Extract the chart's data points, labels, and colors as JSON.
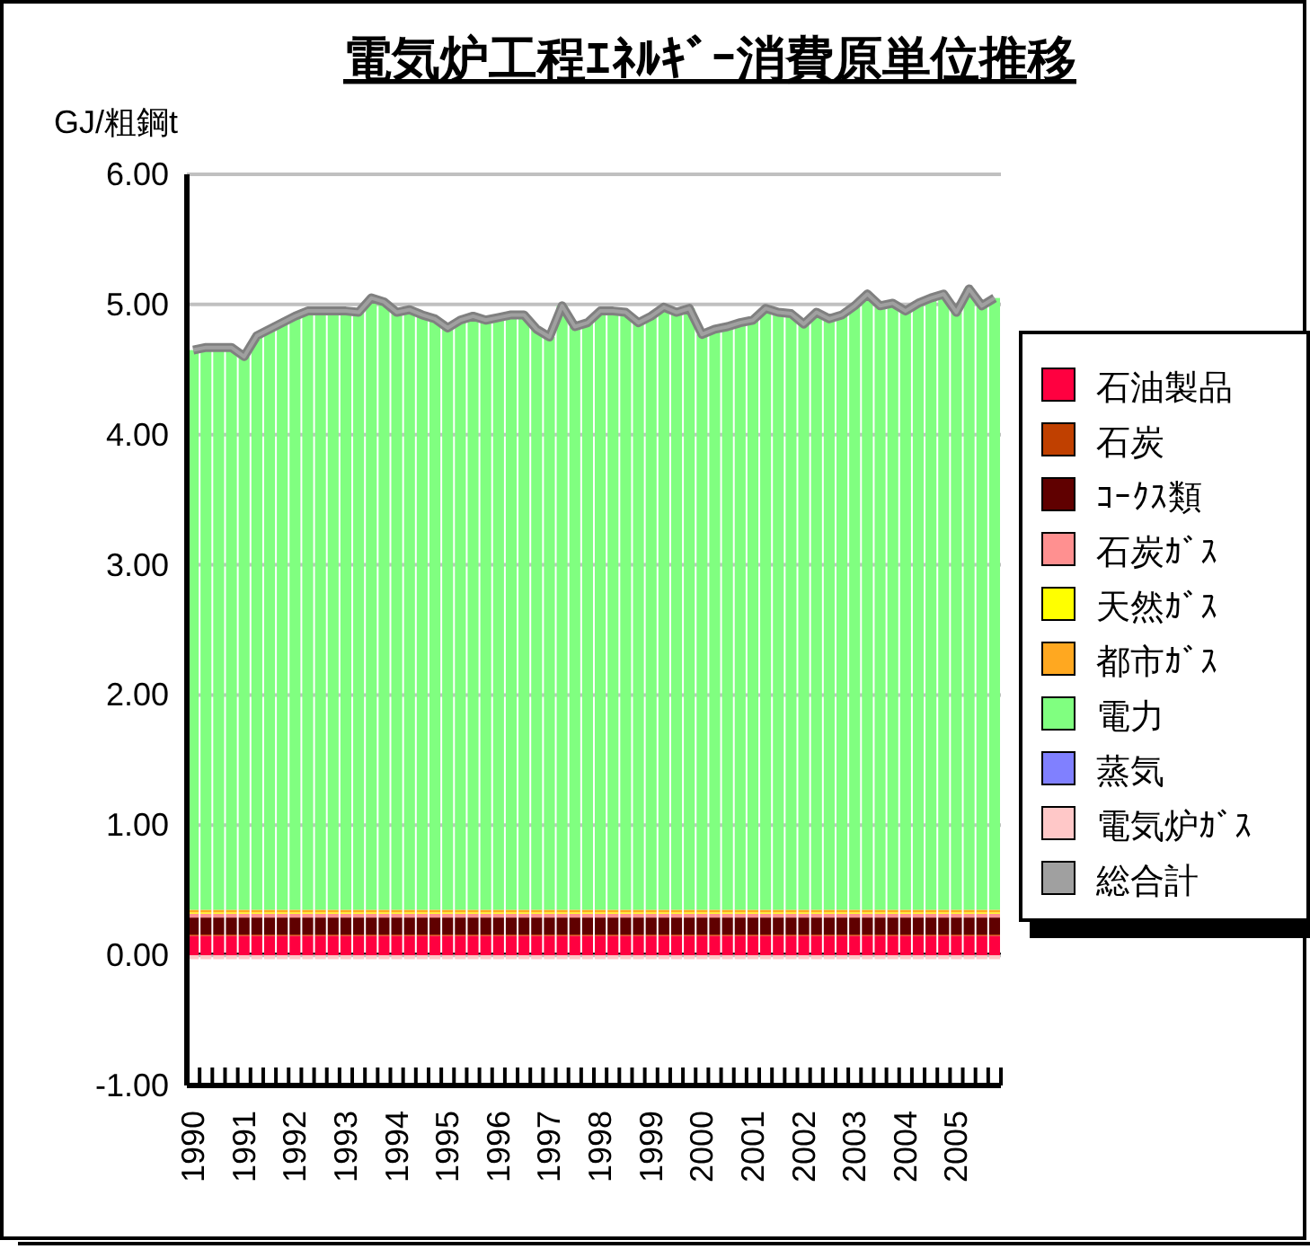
{
  "chart_data": {
    "type": "bar",
    "stacked": true,
    "title": "電気炉工程ｴﾈﾙｷﾞｰ消費原単位推移",
    "ylabel": "GJ/粗鋼t",
    "categories": [
      "1990",
      null,
      null,
      null,
      "1991",
      null,
      null,
      null,
      "1992",
      null,
      null,
      null,
      "1993",
      null,
      null,
      null,
      "1994",
      null,
      null,
      null,
      "1995",
      null,
      null,
      null,
      "1996",
      null,
      null,
      null,
      "1997",
      null,
      null,
      null,
      "1998",
      null,
      null,
      null,
      "1999",
      null,
      null,
      null,
      "2000",
      null,
      null,
      null,
      "2001",
      null,
      null,
      null,
      "2002",
      null,
      null,
      null,
      "2003",
      null,
      null,
      null,
      "2004",
      null,
      null,
      null,
      "2005",
      null,
      null,
      null
    ],
    "ylim": [
      -1,
      6
    ],
    "yticks": [
      {
        "value": -1,
        "label": "-1.00"
      },
      {
        "value": 0,
        "label": "0.00"
      },
      {
        "value": 1,
        "label": "1.00"
      },
      {
        "value": 2,
        "label": "2.00"
      },
      {
        "value": 3,
        "label": "3.00"
      },
      {
        "value": 4,
        "label": "4.00"
      },
      {
        "value": 5,
        "label": "5.00"
      },
      {
        "value": 6,
        "label": "6.00"
      }
    ],
    "grid": "y",
    "legend": "right",
    "series": [
      {
        "name": "石油製品",
        "color": "#ff0040",
        "values": [
          0.15,
          0.15,
          0.15,
          0.15,
          0.15,
          0.15,
          0.15,
          0.15,
          0.15,
          0.15,
          0.15,
          0.15,
          0.15,
          0.15,
          0.15,
          0.15,
          0.15,
          0.15,
          0.15,
          0.15,
          0.15,
          0.15,
          0.15,
          0.15,
          0.15,
          0.15,
          0.15,
          0.15,
          0.15,
          0.15,
          0.15,
          0.15,
          0.15,
          0.15,
          0.15,
          0.15,
          0.15,
          0.15,
          0.15,
          0.15,
          0.15,
          0.15,
          0.15,
          0.15,
          0.15,
          0.15,
          0.15,
          0.15,
          0.15,
          0.15,
          0.15,
          0.15,
          0.15,
          0.15,
          0.15,
          0.15,
          0.15,
          0.15,
          0.15,
          0.15,
          0.15,
          0.15,
          0.15,
          0.15
        ]
      },
      {
        "name": "石炭",
        "color": "#c04000",
        "values": [
          0.01,
          0.01,
          0.01,
          0.01,
          0.01,
          0.01,
          0.01,
          0.01,
          0.01,
          0.01,
          0.01,
          0.01,
          0.01,
          0.01,
          0.01,
          0.01,
          0.01,
          0.01,
          0.01,
          0.01,
          0.01,
          0.01,
          0.01,
          0.01,
          0.01,
          0.01,
          0.01,
          0.01,
          0.01,
          0.01,
          0.01,
          0.01,
          0.01,
          0.01,
          0.01,
          0.01,
          0.01,
          0.01,
          0.01,
          0.01,
          0.01,
          0.01,
          0.01,
          0.01,
          0.01,
          0.01,
          0.01,
          0.01,
          0.01,
          0.01,
          0.01,
          0.01,
          0.01,
          0.01,
          0.01,
          0.01,
          0.01,
          0.01,
          0.01,
          0.01,
          0.01,
          0.01,
          0.01,
          0.01
        ]
      },
      {
        "name": "ｺｰｸｽ類",
        "color": "#600000",
        "values": [
          0.13,
          0.13,
          0.13,
          0.13,
          0.13,
          0.13,
          0.13,
          0.13,
          0.13,
          0.13,
          0.13,
          0.13,
          0.13,
          0.13,
          0.13,
          0.13,
          0.13,
          0.13,
          0.13,
          0.13,
          0.13,
          0.13,
          0.13,
          0.13,
          0.13,
          0.13,
          0.13,
          0.13,
          0.13,
          0.13,
          0.13,
          0.13,
          0.13,
          0.13,
          0.13,
          0.13,
          0.13,
          0.13,
          0.13,
          0.13,
          0.13,
          0.13,
          0.13,
          0.13,
          0.13,
          0.13,
          0.13,
          0.13,
          0.13,
          0.13,
          0.13,
          0.13,
          0.13,
          0.13,
          0.13,
          0.13,
          0.13,
          0.13,
          0.13,
          0.13,
          0.13,
          0.13,
          0.13,
          0.13
        ]
      },
      {
        "name": "石炭ｶﾞｽ",
        "color": "#ff9090",
        "values": [
          0.03,
          0.03,
          0.03,
          0.03,
          0.03,
          0.03,
          0.03,
          0.03,
          0.03,
          0.03,
          0.03,
          0.03,
          0.03,
          0.03,
          0.03,
          0.03,
          0.03,
          0.03,
          0.03,
          0.03,
          0.03,
          0.03,
          0.03,
          0.03,
          0.03,
          0.03,
          0.03,
          0.03,
          0.03,
          0.03,
          0.03,
          0.03,
          0.03,
          0.03,
          0.03,
          0.03,
          0.03,
          0.03,
          0.03,
          0.03,
          0.03,
          0.03,
          0.03,
          0.03,
          0.03,
          0.03,
          0.03,
          0.03,
          0.03,
          0.03,
          0.03,
          0.03,
          0.03,
          0.03,
          0.03,
          0.03,
          0.03,
          0.03,
          0.03,
          0.03,
          0.03,
          0.03,
          0.03,
          0.03
        ]
      },
      {
        "name": "天然ｶﾞｽ",
        "color": "#ffff00",
        "values": [
          0.01,
          0.01,
          0.01,
          0.01,
          0.01,
          0.01,
          0.01,
          0.01,
          0.01,
          0.01,
          0.01,
          0.01,
          0.01,
          0.01,
          0.01,
          0.01,
          0.01,
          0.01,
          0.01,
          0.01,
          0.01,
          0.01,
          0.01,
          0.01,
          0.01,
          0.01,
          0.01,
          0.01,
          0.01,
          0.01,
          0.01,
          0.01,
          0.01,
          0.01,
          0.01,
          0.01,
          0.01,
          0.01,
          0.01,
          0.01,
          0.01,
          0.01,
          0.01,
          0.01,
          0.01,
          0.01,
          0.01,
          0.01,
          0.01,
          0.01,
          0.01,
          0.01,
          0.01,
          0.01,
          0.01,
          0.01,
          0.01,
          0.01,
          0.01,
          0.01,
          0.01,
          0.01,
          0.01,
          0.01
        ]
      },
      {
        "name": "都市ｶﾞｽ",
        "color": "#ffa820",
        "values": [
          0.02,
          0.02,
          0.02,
          0.02,
          0.02,
          0.02,
          0.02,
          0.02,
          0.02,
          0.02,
          0.02,
          0.02,
          0.02,
          0.02,
          0.02,
          0.02,
          0.02,
          0.02,
          0.02,
          0.02,
          0.02,
          0.02,
          0.02,
          0.02,
          0.02,
          0.02,
          0.02,
          0.02,
          0.02,
          0.02,
          0.02,
          0.02,
          0.02,
          0.02,
          0.02,
          0.02,
          0.02,
          0.02,
          0.02,
          0.02,
          0.02,
          0.02,
          0.02,
          0.02,
          0.02,
          0.02,
          0.02,
          0.02,
          0.02,
          0.02,
          0.02,
          0.02,
          0.02,
          0.02,
          0.02,
          0.02,
          0.02,
          0.02,
          0.02,
          0.02,
          0.02,
          0.02,
          0.02,
          0.02
        ]
      },
      {
        "name": "電力",
        "color": "#80ff80",
        "values": [
          4.3,
          4.32,
          4.32,
          4.32,
          4.25,
          4.41,
          4.46,
          4.51,
          4.56,
          4.6,
          4.6,
          4.6,
          4.6,
          4.59,
          4.7,
          4.67,
          4.59,
          4.61,
          4.57,
          4.54,
          4.47,
          4.53,
          4.56,
          4.53,
          4.55,
          4.57,
          4.57,
          4.46,
          4.4,
          4.64,
          4.48,
          4.51,
          4.6,
          4.6,
          4.59,
          4.51,
          4.56,
          4.63,
          4.59,
          4.62,
          4.42,
          4.46,
          4.48,
          4.51,
          4.53,
          4.62,
          4.59,
          4.58,
          4.5,
          4.59,
          4.54,
          4.57,
          4.64,
          4.73,
          4.64,
          4.66,
          4.6,
          4.66,
          4.7,
          4.73,
          4.59,
          4.77,
          4.64,
          4.7
        ]
      },
      {
        "name": "蒸気",
        "color": "#8080ff",
        "values": [
          0,
          0,
          0,
          0,
          0,
          0,
          0,
          0,
          0,
          0,
          0,
          0,
          0,
          0,
          0,
          0,
          0,
          0,
          0,
          0,
          0,
          0,
          0,
          0,
          0,
          0,
          0,
          0,
          0,
          0,
          0,
          0,
          0,
          0,
          0,
          0,
          0,
          0,
          0,
          0,
          0,
          0,
          0,
          0,
          0,
          0,
          0,
          0,
          0,
          0,
          0,
          0,
          0,
          0,
          0,
          0,
          0,
          0,
          0,
          0,
          0,
          0,
          0,
          0
        ]
      },
      {
        "name": "電気炉ｶﾞｽ",
        "color": "#ffc8c8",
        "values": [
          -0.03,
          -0.03,
          -0.03,
          -0.03,
          -0.03,
          -0.03,
          -0.03,
          -0.03,
          -0.03,
          -0.03,
          -0.03,
          -0.03,
          -0.03,
          -0.03,
          -0.03,
          -0.03,
          -0.03,
          -0.03,
          -0.03,
          -0.03,
          -0.03,
          -0.03,
          -0.03,
          -0.03,
          -0.03,
          -0.03,
          -0.03,
          -0.03,
          -0.03,
          -0.03,
          -0.03,
          -0.03,
          -0.03,
          -0.03,
          -0.03,
          -0.03,
          -0.03,
          -0.03,
          -0.03,
          -0.03,
          -0.03,
          -0.03,
          -0.03,
          -0.03,
          -0.03,
          -0.03,
          -0.03,
          -0.03,
          -0.03,
          -0.03,
          -0.03,
          -0.03,
          -0.03,
          -0.03,
          -0.03,
          -0.03,
          -0.03,
          -0.03,
          -0.03,
          -0.03,
          -0.03,
          -0.03,
          -0.03,
          -0.03
        ]
      },
      {
        "name": "総合計",
        "type": "line",
        "color": "#a0a0a0",
        "values": [
          4.65,
          4.67,
          4.67,
          4.67,
          4.6,
          4.76,
          4.81,
          4.86,
          4.91,
          4.95,
          4.95,
          4.95,
          4.95,
          4.94,
          5.05,
          5.02,
          4.94,
          4.96,
          4.92,
          4.89,
          4.82,
          4.88,
          4.91,
          4.88,
          4.9,
          4.92,
          4.92,
          4.81,
          4.75,
          4.99,
          4.83,
          4.86,
          4.95,
          4.95,
          4.94,
          4.86,
          4.91,
          4.98,
          4.94,
          4.97,
          4.77,
          4.81,
          4.83,
          4.86,
          4.88,
          4.97,
          4.94,
          4.93,
          4.85,
          4.94,
          4.89,
          4.92,
          4.99,
          5.08,
          4.99,
          5.01,
          4.95,
          5.01,
          5.05,
          5.08,
          4.94,
          5.12,
          4.99,
          5.05
        ]
      }
    ]
  }
}
